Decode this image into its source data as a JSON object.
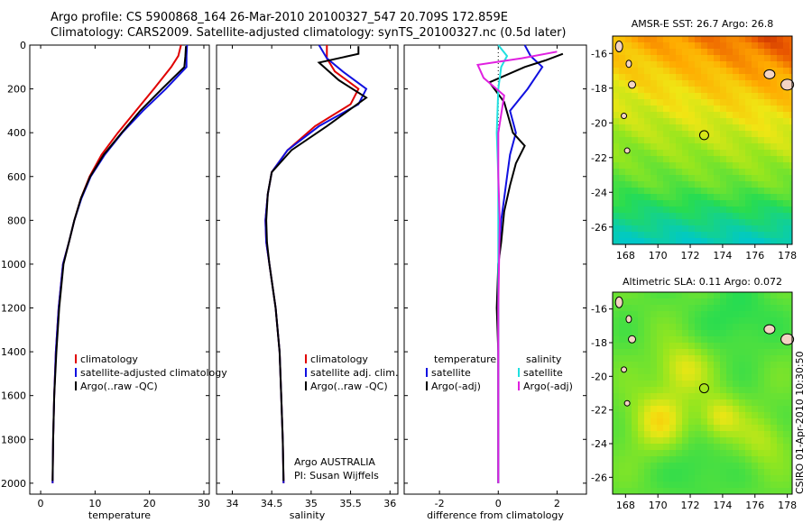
{
  "header": {
    "line1": "Argo profile: CS 5900868_164 26-Mar-2010 20100327_547 20.709S 172.859E",
    "line2": "Climatology: CARS2009. Satellite-adjusted climatology: synTS_20100327.nc (0.5d later)"
  },
  "chart_data": [
    {
      "id": "temperature",
      "type": "line",
      "xlabel": "temperature",
      "xlim": [
        -2,
        31
      ],
      "ylim": [
        0,
        2050
      ],
      "y_inverted": true,
      "xticks": [
        0,
        10,
        20,
        30
      ],
      "yticks": [
        0,
        200,
        400,
        600,
        800,
        1000,
        1200,
        1400,
        1600,
        1800,
        2000
      ],
      "legend": [
        "climatology",
        "satellite-adjusted climatology",
        "Argo(..raw -QC)"
      ],
      "series": [
        {
          "name": "climatology",
          "color": "#e00000",
          "x": [
            25.8,
            25.3,
            24.0,
            20.8,
            17.5,
            14.2,
            11.2,
            9.0,
            7.4,
            6.2,
            5.2,
            4.1,
            3.3,
            2.8,
            2.5,
            2.3,
            2.2
          ],
          "y": [
            0,
            50,
            100,
            200,
            300,
            400,
            500,
            600,
            700,
            800,
            900,
            1000,
            1200,
            1400,
            1600,
            1800,
            2000
          ]
        },
        {
          "name": "satellite-adjusted climatology",
          "color": "#1010e0",
          "x": [
            26.9,
            26.8,
            26.8,
            23.0,
            18.8,
            15.0,
            11.8,
            9.2,
            7.5,
            6.2,
            5.2,
            4.1,
            3.3,
            2.8,
            2.5,
            2.3,
            2.2
          ],
          "y": [
            0,
            50,
            100,
            200,
            300,
            400,
            500,
            600,
            700,
            800,
            900,
            1000,
            1200,
            1400,
            1600,
            1800,
            2000
          ]
        },
        {
          "name": "Argo(..raw -QC)",
          "color": "#000000",
          "x": [
            26.7,
            26.6,
            26.4,
            22.3,
            18.3,
            14.9,
            11.6,
            9.1,
            7.4,
            6.2,
            5.2,
            4.2,
            3.4,
            2.9,
            2.5,
            2.3,
            2.2
          ],
          "y": [
            5,
            50,
            100,
            200,
            300,
            400,
            500,
            600,
            700,
            800,
            900,
            1000,
            1200,
            1400,
            1600,
            1800,
            1990
          ]
        }
      ]
    },
    {
      "id": "salinity",
      "type": "line",
      "xlabel": "salinity",
      "xlim": [
        33.8,
        36.1
      ],
      "ylim": [
        0,
        2050
      ],
      "y_inverted": true,
      "xticks": [
        34,
        34.5,
        35,
        35.5,
        36
      ],
      "legend": [
        "climatology",
        "satellite adj. clim.",
        "Argo(..raw -QC)"
      ],
      "annotation": [
        "Argo AUSTRALIA",
        "PI: Susan Wijffels"
      ],
      "series": [
        {
          "name": "climatology",
          "color": "#e00000",
          "x": [
            35.2,
            35.2,
            35.3,
            35.6,
            35.5,
            35.05,
            34.7,
            34.5,
            34.45,
            34.42,
            34.43,
            34.47,
            34.55,
            34.6,
            34.62,
            34.64,
            34.65
          ],
          "y": [
            0,
            60,
            120,
            200,
            270,
            370,
            480,
            580,
            680,
            800,
            900,
            1000,
            1200,
            1400,
            1600,
            1800,
            2000
          ]
        },
        {
          "name": "satellite adj. clim.",
          "color": "#1010e0",
          "x": [
            35.1,
            35.2,
            35.4,
            35.7,
            35.6,
            35.1,
            34.7,
            34.5,
            34.45,
            34.42,
            34.43,
            34.47,
            34.55,
            34.6,
            34.62,
            34.64,
            34.65
          ],
          "y": [
            0,
            60,
            120,
            200,
            270,
            370,
            480,
            580,
            680,
            800,
            900,
            1000,
            1200,
            1400,
            1600,
            1800,
            2000
          ]
        },
        {
          "name": "Argo(..raw -QC)",
          "color": "#000000",
          "x": [
            35.6,
            35.6,
            35.1,
            35.35,
            35.7,
            35.2,
            34.75,
            34.5,
            34.45,
            34.43,
            34.44,
            34.47,
            34.55,
            34.6,
            34.62,
            34.64,
            34.65
          ],
          "y": [
            5,
            40,
            80,
            160,
            240,
            370,
            480,
            580,
            680,
            800,
            900,
            1000,
            1200,
            1400,
            1600,
            1800,
            1990
          ]
        }
      ]
    },
    {
      "id": "difference",
      "type": "line",
      "xlabel": "difference from climatology",
      "xlim": [
        -3.2,
        3.0
      ],
      "ylim": [
        0,
        2050
      ],
      "y_inverted": true,
      "xticks": [
        -2,
        0,
        2
      ],
      "legend_left_title": "temperature",
      "legend_right_title": "salinity",
      "legend": [
        "satellite",
        "Argo(-adj)",
        "satellite",
        "Argo(-adj)"
      ],
      "series": [
        {
          "name": "temperature satellite",
          "color": "#1010e0",
          "x": [
            0.9,
            1.1,
            1.5,
            1.0,
            0.4,
            0.6,
            0.4,
            0.3,
            0.2,
            0.1,
            0.05,
            0,
            0,
            0,
            0,
            0
          ],
          "y": [
            0,
            50,
            100,
            200,
            300,
            400,
            500,
            600,
            700,
            800,
            900,
            1000,
            1200,
            1400,
            1600,
            2000
          ]
        },
        {
          "name": "temperature Argo(-adj)",
          "color": "#000000",
          "x": [
            2.2,
            1.6,
            0.9,
            -0.3,
            0.2,
            0.5,
            0.9,
            0.6,
            0.4,
            0.2,
            0.1,
            0,
            -0.05,
            0,
            0,
            0
          ],
          "y": [
            40,
            70,
            100,
            170,
            260,
            400,
            460,
            540,
            640,
            760,
            900,
            1000,
            1200,
            1400,
            1600,
            2000
          ]
        },
        {
          "name": "salinity satellite",
          "color": "#20e0e0",
          "x": [
            0,
            0.3,
            0.1,
            0,
            -0.05,
            0,
            0,
            0,
            0,
            0
          ],
          "y": [
            0,
            50,
            100,
            200,
            400,
            600,
            800,
            1000,
            1500,
            2000
          ]
        },
        {
          "name": "salinity Argo(-adj)",
          "color": "#e020e0",
          "x": [
            2.0,
            0.8,
            -0.7,
            -0.5,
            0.2,
            0,
            0,
            0.05,
            0,
            0
          ],
          "y": [
            30,
            60,
            90,
            150,
            230,
            400,
            600,
            800,
            1200,
            2000
          ]
        }
      ]
    },
    {
      "id": "sst-map",
      "type": "heatmap",
      "title": "AMSR-E SST: 26.7 Argo: 26.8",
      "xticks": [
        168,
        170,
        172,
        174,
        176,
        178
      ],
      "yticks": [
        -16,
        -18,
        -20,
        -22,
        -24,
        -26
      ],
      "xlim": [
        167.2,
        178.3
      ],
      "ylim": [
        -27.0,
        -15.0
      ],
      "marker": {
        "lon": 172.859,
        "lat": -20.709
      }
    },
    {
      "id": "sla-map",
      "type": "heatmap",
      "title": "Altimetric SLA: 0.11 Argo: 0.072",
      "xticks": [
        168,
        170,
        172,
        174,
        176,
        178
      ],
      "yticks": [
        -16,
        -18,
        -20,
        -22,
        -24,
        -26
      ],
      "xlim": [
        167.2,
        178.3
      ],
      "ylim": [
        -27.0,
        -15.0
      ],
      "marker": {
        "lon": 172.859,
        "lat": -20.709
      }
    }
  ],
  "footer": {
    "timestamp": "CSIRO 01-Apr-2010 10:30:50"
  }
}
